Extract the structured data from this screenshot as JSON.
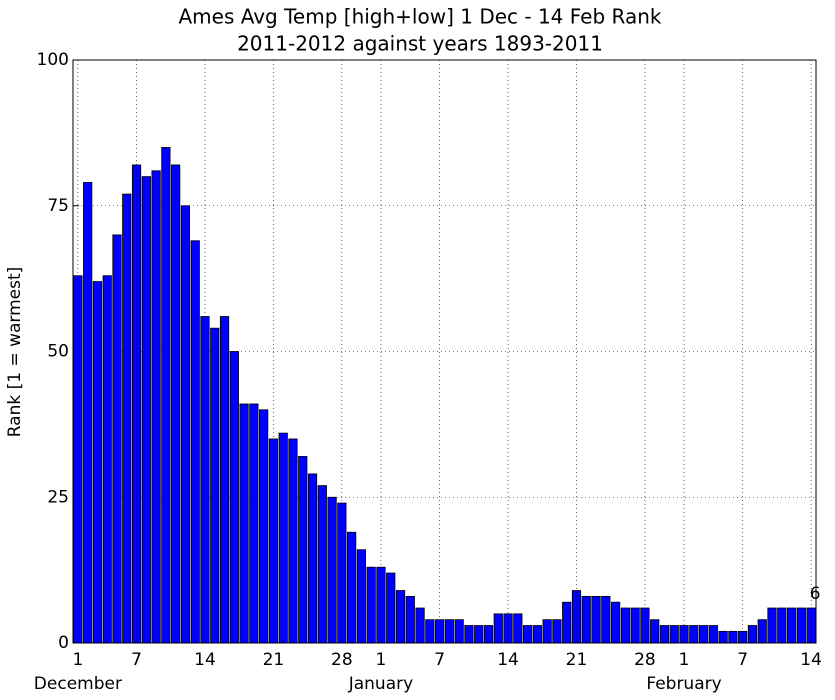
{
  "chart_data": {
    "type": "bar",
    "title": "Ames Avg Temp [high+low] 1 Dec - 14 Feb Rank",
    "subtitle": "2011-2012 against years 1893-2011",
    "y_label": "Rank [1 = warmest]",
    "categories": [
      "1",
      null,
      null,
      null,
      null,
      null,
      "7",
      null,
      null,
      null,
      null,
      null,
      null,
      "14",
      null,
      null,
      null,
      null,
      null,
      null,
      "21",
      null,
      null,
      null,
      null,
      null,
      null,
      "28",
      null,
      null,
      null,
      "1",
      null,
      null,
      null,
      null,
      null,
      "7",
      null,
      null,
      null,
      null,
      null,
      null,
      "14",
      null,
      null,
      null,
      null,
      null,
      null,
      "21",
      null,
      null,
      null,
      null,
      null,
      null,
      "28",
      null,
      null,
      null,
      "1",
      null,
      null,
      null,
      null,
      null,
      "7",
      null,
      null,
      null,
      null,
      null,
      null,
      "14"
    ],
    "month_labels": [
      "December",
      "January",
      "February"
    ],
    "values": [
      63,
      79,
      62,
      63,
      70,
      77,
      82,
      80,
      81,
      85,
      82,
      75,
      69,
      56,
      54,
      56,
      50,
      41,
      41,
      40,
      35,
      36,
      35,
      32,
      29,
      27,
      25,
      24,
      19,
      16,
      13,
      13,
      12,
      9,
      8,
      6,
      4,
      4,
      4,
      4,
      3,
      3,
      3,
      5,
      5,
      5,
      3,
      3,
      4,
      4,
      7,
      9,
      8,
      8,
      8,
      7,
      6,
      6,
      6,
      4,
      3,
      3,
      3,
      3,
      3,
      3,
      2,
      2,
      2,
      3,
      4,
      6,
      6,
      6,
      6,
      6
    ],
    "value_labels": [
      null,
      null,
      null,
      null,
      null,
      null,
      null,
      null,
      null,
      null,
      null,
      null,
      null,
      null,
      null,
      null,
      null,
      null,
      null,
      null,
      null,
      null,
      null,
      null,
      null,
      null,
      null,
      null,
      null,
      null,
      null,
      null,
      null,
      null,
      null,
      null,
      null,
      null,
      null,
      null,
      null,
      null,
      null,
      null,
      null,
      null,
      null,
      null,
      null,
      null,
      null,
      null,
      null,
      null,
      null,
      null,
      null,
      null,
      null,
      null,
      null,
      null,
      null,
      null,
      null,
      null,
      null,
      null,
      null,
      null,
      null,
      null,
      null,
      null,
      null,
      "6"
    ],
    "color": "#0000ff",
    "ylim": [
      0,
      100
    ],
    "yticks": [
      0,
      25,
      50,
      75,
      100
    ],
    "grid": true
  }
}
